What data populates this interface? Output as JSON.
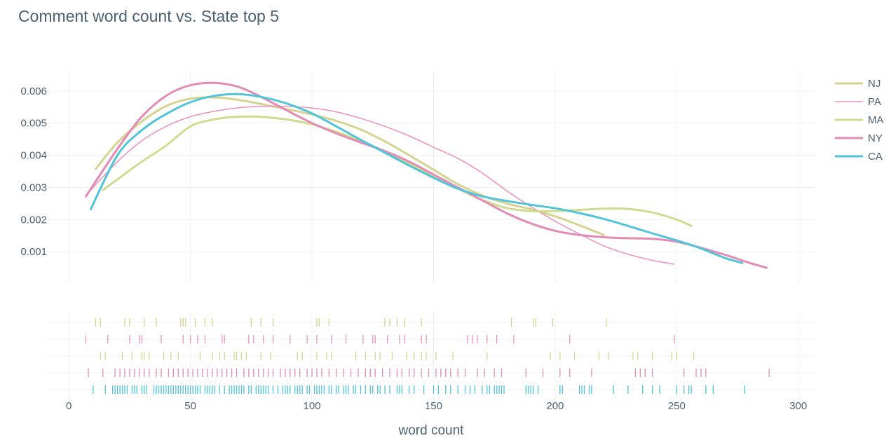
{
  "chart_data": {
    "type": "line",
    "subtype": "distribution-plot (kde curves + rug plot)",
    "title": "Comment word count vs. State top 5",
    "xlabel": "word count",
    "ylabel": "",
    "xlim": [
      -9,
      307
    ],
    "ylim": [
      0,
      0.00665
    ],
    "x_ticks": [
      0,
      50,
      100,
      150,
      200,
      250,
      300
    ],
    "y_ticks": [
      0.001,
      0.002,
      0.003,
      0.004,
      0.005,
      0.006
    ],
    "y_tick_labels": [
      "0.001",
      "0.002",
      "0.003",
      "0.004",
      "0.005",
      "0.006"
    ],
    "grid": true,
    "legend_position": "right",
    "series": [
      {
        "name": "NJ",
        "color": "#d4d38f",
        "line": "solid",
        "x": [
          11,
          20,
          30,
          40,
          50,
          60,
          70,
          80,
          90,
          100,
          110,
          120,
          130,
          140,
          150,
          160,
          170,
          180,
          190,
          200,
          210,
          220
        ],
        "y": [
          0.00357,
          0.0044,
          0.00505,
          0.00553,
          0.00576,
          0.0058,
          0.00572,
          0.00558,
          0.00543,
          0.00527,
          0.00507,
          0.0048,
          0.00443,
          0.004,
          0.00355,
          0.0031,
          0.00275,
          0.0025,
          0.00232,
          0.0021,
          0.00182,
          0.00152
        ],
        "rug": [
          11,
          13,
          23,
          25,
          31,
          36,
          46,
          47,
          48,
          52,
          56,
          59,
          75,
          79,
          84,
          102,
          103,
          107,
          130,
          132,
          135,
          138,
          145,
          182,
          191,
          192,
          199,
          221
        ]
      },
      {
        "name": "PA",
        "color": "#ef8fbd",
        "line": "thin",
        "x": [
          7,
          20,
          30,
          40,
          50,
          60,
          70,
          80,
          90,
          100,
          110,
          120,
          130,
          140,
          150,
          160,
          170,
          180,
          190,
          200,
          210,
          220,
          230,
          240,
          249
        ],
        "y": [
          0.00275,
          0.0038,
          0.00445,
          0.0049,
          0.0052,
          0.00537,
          0.00548,
          0.00552,
          0.00552,
          0.00547,
          0.00535,
          0.00515,
          0.0049,
          0.0046,
          0.00425,
          0.0039,
          0.00345,
          0.0029,
          0.0024,
          0.00195,
          0.00155,
          0.00118,
          0.00092,
          0.00073,
          0.00061
        ],
        "rug": [
          7,
          16,
          25,
          29,
          30,
          38,
          47,
          50,
          53,
          56,
          63,
          64,
          74,
          76,
          80,
          84,
          91,
          98,
          102,
          108,
          114,
          121,
          125,
          126,
          131,
          136,
          138,
          145,
          147,
          164,
          166,
          168,
          172,
          176,
          183,
          206,
          249
        ]
      },
      {
        "name": "MA",
        "color": "#cfdc90",
        "line": "solid",
        "x": [
          14,
          20,
          30,
          40,
          50,
          60,
          70,
          80,
          90,
          100,
          110,
          120,
          130,
          140,
          150,
          160,
          170,
          180,
          190,
          200,
          210,
          220,
          230,
          240,
          250,
          256
        ],
        "y": [
          0.00292,
          0.00325,
          0.0038,
          0.0043,
          0.0049,
          0.00512,
          0.0052,
          0.00519,
          0.00511,
          0.00496,
          0.00473,
          0.00445,
          0.00412,
          0.00375,
          0.00336,
          0.00296,
          0.00261,
          0.00236,
          0.00226,
          0.00226,
          0.0023,
          0.00234,
          0.00233,
          0.00222,
          0.002,
          0.0018
        ],
        "rug": [
          13,
          15,
          22,
          26,
          30,
          31,
          33,
          39,
          42,
          45,
          54,
          59,
          62,
          64,
          68,
          69,
          71,
          73,
          79,
          83,
          94,
          96,
          102,
          106,
          108,
          118,
          122,
          126,
          128,
          133,
          139,
          142,
          145,
          147,
          151,
          158,
          172,
          198,
          202,
          208,
          218,
          222,
          232,
          234,
          240,
          248,
          250,
          257
        ]
      },
      {
        "name": "NY",
        "color": "#e38bb4",
        "line": "solid",
        "x": [
          7,
          20,
          30,
          40,
          50,
          60,
          70,
          80,
          90,
          100,
          110,
          120,
          130,
          140,
          150,
          160,
          170,
          180,
          190,
          200,
          210,
          220,
          230,
          240,
          250,
          260,
          270,
          280,
          287
        ],
        "y": [
          0.00272,
          0.0042,
          0.0052,
          0.00585,
          0.00618,
          0.00625,
          0.00612,
          0.00578,
          0.00538,
          0.005,
          0.00468,
          0.0044,
          0.00413,
          0.0038,
          0.0034,
          0.003,
          0.0026,
          0.0022,
          0.00188,
          0.00165,
          0.00152,
          0.00145,
          0.00142,
          0.0014,
          0.00131,
          0.00112,
          0.0009,
          0.00065,
          0.0005
        ],
        "rug": [
          8,
          14,
          19,
          21,
          23,
          25,
          27,
          29,
          31,
          33,
          36,
          38,
          41,
          43,
          45,
          47,
          49,
          51,
          53,
          55,
          57,
          59,
          61,
          63,
          65,
          67,
          69,
          72,
          74,
          76,
          78,
          80,
          82,
          84,
          87,
          89,
          91,
          93,
          95,
          98,
          100,
          102,
          104,
          107,
          110,
          113,
          116,
          119,
          122,
          124,
          126,
          129,
          132,
          135,
          137,
          140,
          142,
          145,
          148,
          151,
          153,
          155,
          157,
          160,
          163,
          168,
          171,
          175,
          178,
          188,
          195,
          202,
          206,
          215,
          233,
          235,
          237,
          240,
          253,
          258,
          260,
          262,
          288
        ]
      },
      {
        "name": "CA",
        "color": "#4fc4da",
        "line": "solid",
        "x": [
          9,
          20,
          30,
          40,
          50,
          60,
          70,
          80,
          90,
          100,
          110,
          120,
          130,
          140,
          150,
          160,
          170,
          180,
          190,
          200,
          210,
          220,
          230,
          240,
          250,
          260,
          270,
          277
        ],
        "y": [
          0.00232,
          0.004,
          0.00478,
          0.00528,
          0.00565,
          0.00585,
          0.0059,
          0.0058,
          0.0056,
          0.0053,
          0.0049,
          0.00448,
          0.00408,
          0.00368,
          0.0033,
          0.00296,
          0.00272,
          0.00258,
          0.00246,
          0.00235,
          0.0022,
          0.00202,
          0.0018,
          0.00157,
          0.00135,
          0.0011,
          0.0008,
          0.00065
        ],
        "rug": [
          10,
          15,
          18,
          19,
          20,
          21,
          22,
          23,
          24,
          26,
          27,
          28,
          30,
          31,
          32,
          35,
          36,
          37,
          38,
          39,
          40,
          41,
          42,
          43,
          44,
          45,
          46,
          47,
          48,
          49,
          50,
          51,
          52,
          53,
          54,
          56,
          57,
          58,
          59,
          60,
          62,
          64,
          66,
          67,
          68,
          69,
          70,
          71,
          72,
          74,
          75,
          77,
          78,
          79,
          80,
          81,
          82,
          84,
          86,
          88,
          89,
          90,
          91,
          93,
          94,
          95,
          96,
          98,
          99,
          101,
          102,
          103,
          104,
          105,
          107,
          108,
          110,
          111,
          113,
          114,
          115,
          117,
          118,
          120,
          122,
          124,
          125,
          127,
          128,
          130,
          132,
          135,
          136,
          137,
          140,
          142,
          146,
          150,
          152,
          155,
          157,
          160,
          163,
          165,
          167,
          170,
          172,
          173,
          175,
          176,
          177,
          178,
          179,
          188,
          189,
          190,
          191,
          193,
          202,
          203,
          210,
          211,
          212,
          214,
          215,
          224,
          230,
          236,
          240,
          243,
          250,
          253,
          255,
          256,
          262,
          265,
          278
        ]
      }
    ]
  }
}
